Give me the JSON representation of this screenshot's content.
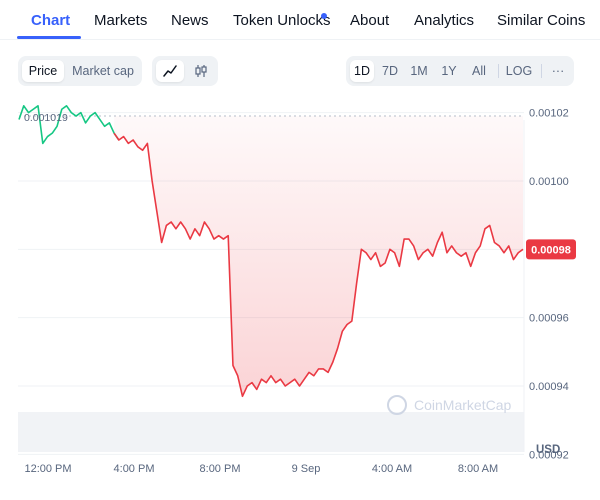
{
  "nav": {
    "tabs": [
      {
        "label": "Chart",
        "active": true
      },
      {
        "label": "Markets"
      },
      {
        "label": "News"
      },
      {
        "label": "Token Unlocks",
        "has_dot": true
      },
      {
        "label": "About"
      },
      {
        "label": "Analytics"
      },
      {
        "label": "Similar Coins"
      }
    ]
  },
  "toolbar": {
    "view_tabs": [
      {
        "label": "Price",
        "active": true
      },
      {
        "label": "Market cap"
      }
    ],
    "chart_types": [
      {
        "icon": "line-chart-icon",
        "active": true
      },
      {
        "icon": "candlestick-icon"
      }
    ],
    "ranges": [
      {
        "label": "1D",
        "active": true
      },
      {
        "label": "7D"
      },
      {
        "label": "1M"
      },
      {
        "label": "1Y"
      },
      {
        "label": "All"
      }
    ],
    "log_label": "LOG",
    "more_label": "···"
  },
  "chart_data": {
    "type": "line",
    "currency_label": "USD",
    "watermark": "CoinMarketCap",
    "reference_price_label": "0.001019",
    "reference_price": 0.001019,
    "current_price_label": "0.00098",
    "current_price": 0.00098,
    "ylim": [
      0.0009125,
      0.0010237
    ],
    "y_ticks": [
      {
        "value": 0.00102,
        "label": "0.00102"
      },
      {
        "value": 0.001,
        "label": "0.00100"
      },
      {
        "value": 0.00098,
        "label": "0.00098"
      },
      {
        "value": 0.00096,
        "label": "0.00096"
      },
      {
        "value": 0.00094,
        "label": "0.00094"
      },
      {
        "value": 0.00092,
        "label": "0.00092"
      }
    ],
    "x_ticks": [
      "12:00 PM",
      "4:00 PM",
      "8:00 PM",
      "9 Sep",
      "4:00 AM",
      "8:00 AM"
    ],
    "colors": {
      "up": "#16c784",
      "down": "#ea3943",
      "badge": "#ea3943"
    },
    "series": [
      {
        "values": [
          0.001018,
          0.001022,
          0.00102,
          0.001021,
          0.001022,
          0.001011,
          0.001013,
          0.001014,
          0.001016,
          0.001021,
          0.001022,
          0.00102,
          0.001019,
          0.00102,
          0.001017,
          0.001019,
          0.00102,
          0.001018,
          0.001016,
          0.001017,
          0.001014,
          0.001012,
          0.001013,
          0.001011,
          0.001012,
          0.00101,
          0.001009,
          0.001011,
          0.001,
          0.000991,
          0.000982,
          0.000987,
          0.000988,
          0.000986,
          0.000988,
          0.000986,
          0.000983,
          0.000986,
          0.000984,
          0.000988,
          0.000986,
          0.000983,
          0.000984,
          0.000983,
          0.000984,
          0.000946,
          0.000943,
          0.000937,
          0.00094,
          0.000941,
          0.000939,
          0.000942,
          0.000941,
          0.000943,
          0.000941,
          0.000942,
          0.00094,
          0.000941,
          0.000942,
          0.00094,
          0.000942,
          0.000944,
          0.000943,
          0.000945,
          0.000945,
          0.000944,
          0.000947,
          0.000951,
          0.000956,
          0.000958,
          0.000959,
          0.00097,
          0.00098,
          0.000979,
          0.000977,
          0.000979,
          0.000975,
          0.000976,
          0.00098,
          0.000979,
          0.000975,
          0.000983,
          0.000983,
          0.000981,
          0.000977,
          0.000979,
          0.00098,
          0.000978,
          0.000982,
          0.000985,
          0.000979,
          0.000981,
          0.000979,
          0.000978,
          0.000979,
          0.000975,
          0.000979,
          0.000981,
          0.000986,
          0.000987,
          0.000982,
          0.000981,
          0.000979,
          0.000981,
          0.000977,
          0.000979,
          0.00098
        ]
      }
    ]
  }
}
